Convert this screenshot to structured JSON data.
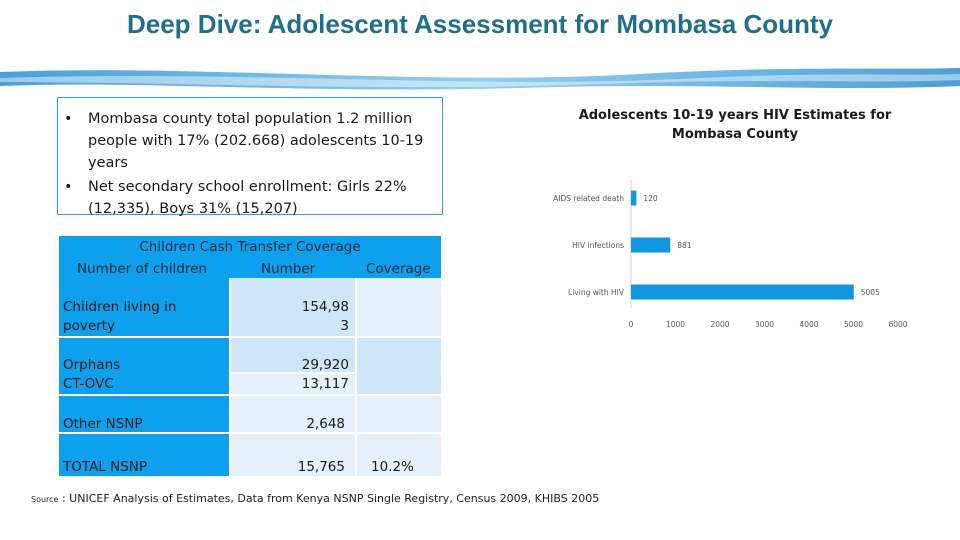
{
  "slide_title": "Deep Dive: Adolescent Assessment for Mombasa County",
  "bullets": [
    {
      "marker": "•",
      "text": "Mombasa county total population 1.2 million people with 17% (202.668) adolescents 10-19 years"
    },
    {
      "marker": "•",
      "text": "Net secondary school enrollment: Girls 22%  (12,335), Boys 31% (15,207)"
    }
  ],
  "cash_transfer_table": {
    "title": "Children Cash Transfer Coverage",
    "headers": [
      "Number of children",
      "Number",
      "Coverage"
    ],
    "rows": [
      {
        "label": "Children living in poverty",
        "number": "154,98\n3",
        "coverage": ""
      },
      {
        "label": "Orphans\nCT-OVC",
        "number": "29,920\n13,117",
        "coverage": ""
      },
      {
        "label": "Other NSNP",
        "number": "2,648",
        "coverage": ""
      },
      {
        "label": "TOTAL NSNP",
        "number": "15,765",
        "coverage": "10.2%"
      }
    ]
  },
  "source": {
    "label": "Source",
    "text": ": UNICEF Analysis of Estimates, Data from Kenya NSNP Single Registry, Census 2009, KHIBS 2005"
  },
  "colors": {
    "title": "#1f6f8b",
    "accent": "#0ea0ec",
    "bar": "#1296e0"
  },
  "chart_data": {
    "type": "bar",
    "orientation": "horizontal",
    "title": "Adolescents 10-19 years HIV Estimates for Mombasa County",
    "categories": [
      "AIDS related death",
      "HIV infections",
      "Living with HIV"
    ],
    "values": [
      120,
      881,
      5005
    ],
    "data_labels": [
      "120",
      "881",
      "5005"
    ],
    "xlim": [
      0,
      6000
    ],
    "xticks": [
      0,
      1000,
      2000,
      3000,
      4000,
      5000,
      6000
    ],
    "grid": false,
    "legend": "none"
  }
}
